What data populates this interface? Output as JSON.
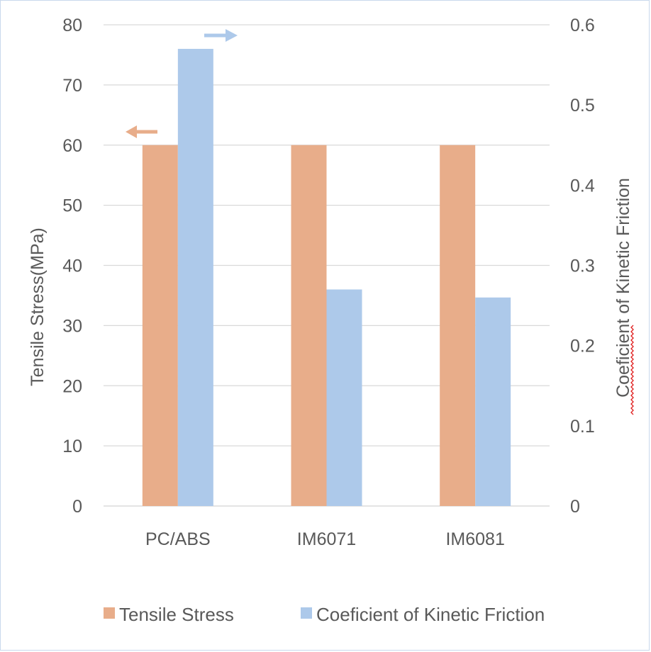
{
  "chart_data": {
    "type": "bar",
    "categories": [
      "PC/ABS",
      "IM6071",
      "IM6081"
    ],
    "series": [
      {
        "name": "Tensile Stress",
        "axis": "left",
        "color": "#e8ad8a",
        "values": [
          60,
          60,
          60
        ]
      },
      {
        "name": "Coeficient of Kinetic Friction",
        "axis": "right",
        "color": "#adc9ea",
        "values": [
          0.57,
          0.27,
          0.26
        ]
      }
    ],
    "left_axis": {
      "label": "Tensile Stress(MPa)",
      "ylim": [
        0,
        80
      ],
      "ticks": [
        "0",
        "10",
        "20",
        "30",
        "40",
        "50",
        "60",
        "70",
        "80"
      ]
    },
    "right_axis": {
      "label": "Coeficient of Kinetic Friction",
      "ylim": [
        0,
        0.6
      ],
      "ticks": [
        "0",
        "0.1",
        "0.2",
        "0.3",
        "0.4",
        "0.5",
        "0.6"
      ]
    },
    "grid": true,
    "legend_position": "bottom",
    "annotations": [
      "arrow pointing left (Tensile Stress uses left axis)",
      "arrow pointing right (Friction uses right axis)"
    ]
  }
}
